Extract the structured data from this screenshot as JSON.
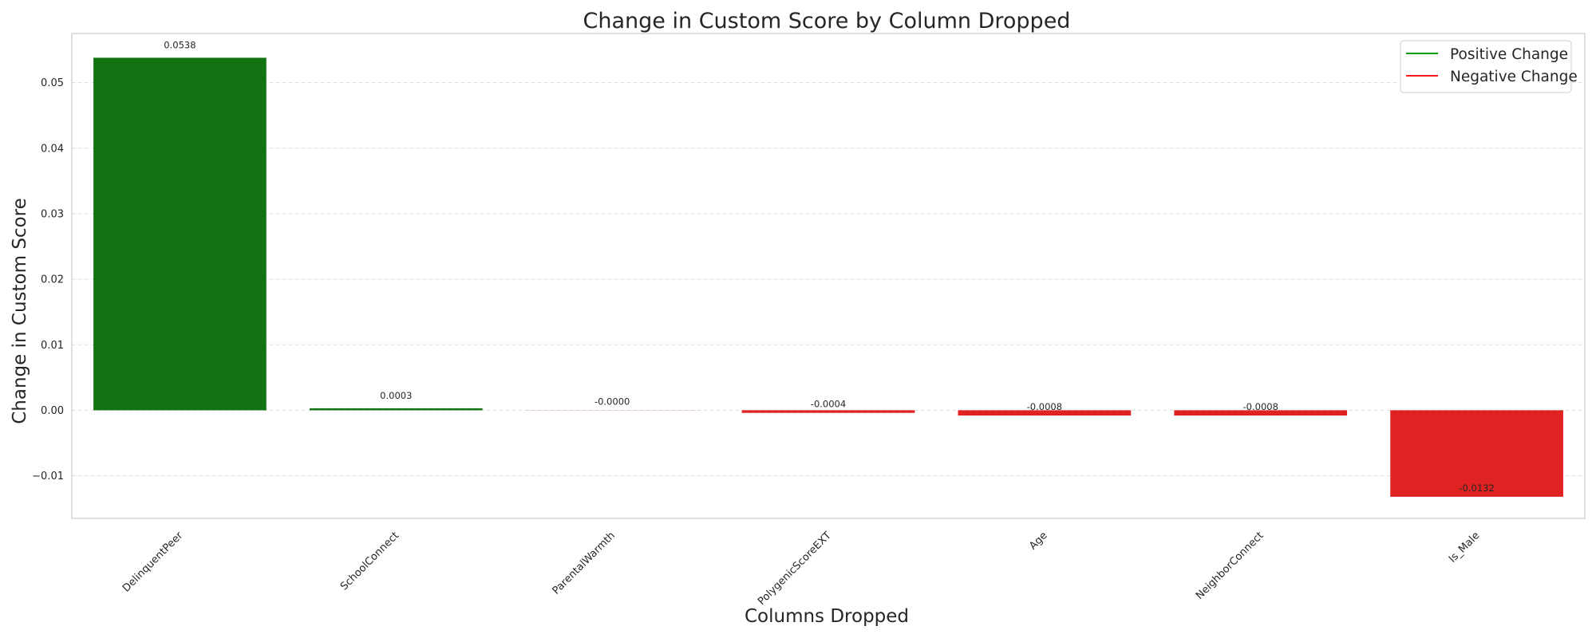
{
  "colors": {
    "positive": "#117311",
    "positive_line": "#009900",
    "negative": "#e02222",
    "negative_line": "#ff1a1a",
    "grid": "#dddddd",
    "frame": "#cccccc"
  },
  "chart_data": {
    "type": "bar",
    "title": "Change in Custom Score by Column Dropped",
    "xlabel": "Columns Dropped",
    "ylabel": "Change in Custom Score",
    "categories": [
      "DelinquentPeer",
      "SchoolConnect",
      "ParentalWarmth",
      "PolygenicScoreEXT",
      "Age",
      "NeighborConnect",
      "Is_Male"
    ],
    "values": [
      0.0538,
      0.0003,
      -1e-05,
      -0.0004,
      -0.0008,
      -0.0008,
      -0.0132
    ],
    "value_labels": [
      "0.0538",
      "0.0003",
      "-0.0000",
      "-0.0004",
      "-0.0008",
      "-0.0008",
      "-0.0132"
    ],
    "yticks": [
      -0.01,
      0.0,
      0.01,
      0.02,
      0.03,
      0.04,
      0.05
    ],
    "ytick_labels": [
      "−0.01",
      "0.00",
      "0.01",
      "0.02",
      "0.03",
      "0.04",
      "0.05"
    ],
    "ylim": [
      -0.0165,
      0.0575
    ],
    "grid": true,
    "legend": {
      "placement": "top-right",
      "entries": [
        {
          "label": "Positive Change",
          "color": "#009900"
        },
        {
          "label": "Negative Change",
          "color": "#ff1a1a"
        }
      ]
    }
  }
}
